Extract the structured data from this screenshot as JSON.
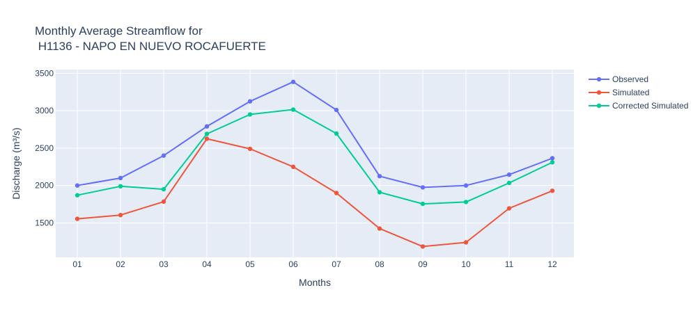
{
  "chart_data": {
    "type": "line",
    "title_lines": [
      "Monthly Average Streamflow for",
      " H1136 - NAPO EN NUEVO ROCAFUERTE"
    ],
    "xlabel": "Months",
    "ylabel": "Discharge (m³/s)",
    "categories": [
      "01",
      "02",
      "03",
      "04",
      "05",
      "06",
      "07",
      "08",
      "09",
      "10",
      "11",
      "12"
    ],
    "yticks": [
      1500,
      2000,
      2500,
      3000,
      3500
    ],
    "ylim": [
      1040,
      3550
    ],
    "grid": true,
    "legend_position": "top-right, outside plot",
    "series": [
      {
        "name": "Observed",
        "color": "#636efa",
        "values": [
          2000,
          2100,
          2400,
          2790,
          3125,
          3385,
          3010,
          2125,
          1975,
          2000,
          2145,
          2365
        ]
      },
      {
        "name": "Simulated",
        "color": "#ef553b",
        "values": [
          1555,
          1605,
          1785,
          2625,
          2490,
          2250,
          1900,
          1425,
          1185,
          1240,
          1695,
          1930
        ]
      },
      {
        "name": "Corrected Simulated",
        "color": "#00cc96",
        "values": [
          1870,
          1990,
          1950,
          2690,
          2950,
          3015,
          2695,
          1910,
          1755,
          1780,
          2035,
          2310
        ]
      }
    ]
  }
}
